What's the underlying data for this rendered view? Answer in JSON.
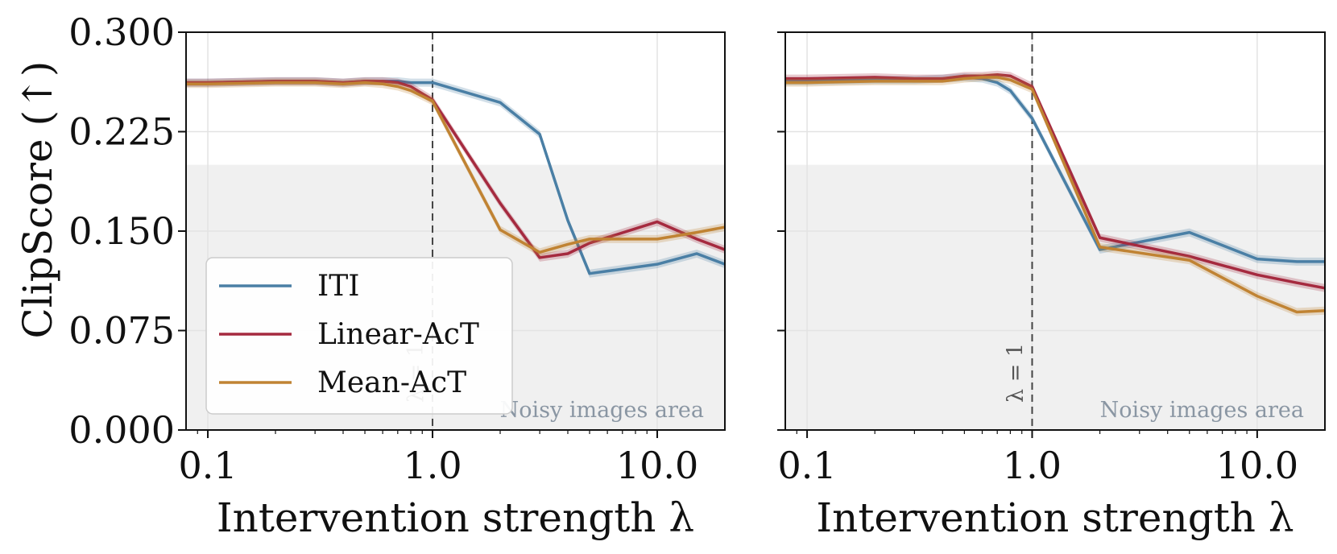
{
  "figure": {
    "ylabel": "ClipScore (↑)",
    "noisy_label": "Noisy images area",
    "lambda_label": "λ = 1",
    "legend": [
      "ITI",
      "Linear-AcT",
      "Mean-AcT"
    ]
  },
  "chart_data": [
    {
      "type": "line",
      "xlabel": "Intervention strength λ",
      "ylabel": "ClipScore (↑)",
      "xscale": "log",
      "xlim": [
        0.08,
        20
      ],
      "ylim": [
        0,
        0.3
      ],
      "xticks": [
        "0.1",
        "1.0",
        "10.0"
      ],
      "yticks": [
        "0.000",
        "0.075",
        "0.150",
        "0.225",
        "0.300"
      ],
      "grid": true,
      "noisy_region_below": 0.2,
      "vline_x": 1.0,
      "legend_position": "lower-left",
      "series": [
        {
          "name": "ITI",
          "color": "#4a7fa5",
          "x": [
            0.08,
            0.1,
            0.2,
            0.3,
            0.4,
            0.5,
            0.6,
            0.7,
            0.8,
            1.0,
            2.0,
            3.0,
            4.0,
            5.0,
            10.0,
            15.0,
            20.0
          ],
          "y": [
            0.262,
            0.262,
            0.263,
            0.263,
            0.262,
            0.263,
            0.263,
            0.263,
            0.262,
            0.262,
            0.247,
            0.223,
            0.158,
            0.118,
            0.125,
            0.133,
            0.125
          ]
        },
        {
          "name": "Linear-AcT",
          "color": "#a52a3f",
          "x": [
            0.08,
            0.1,
            0.2,
            0.3,
            0.4,
            0.5,
            0.6,
            0.7,
            0.8,
            1.0,
            2.0,
            3.0,
            4.0,
            5.0,
            10.0,
            15.0,
            20.0
          ],
          "y": [
            0.262,
            0.262,
            0.263,
            0.263,
            0.262,
            0.263,
            0.263,
            0.262,
            0.259,
            0.249,
            0.171,
            0.13,
            0.133,
            0.141,
            0.157,
            0.144,
            0.136
          ]
        },
        {
          "name": "Mean-AcT",
          "color": "#c08333",
          "x": [
            0.08,
            0.1,
            0.2,
            0.3,
            0.4,
            0.5,
            0.6,
            0.7,
            0.8,
            1.0,
            2.0,
            3.0,
            4.0,
            5.0,
            10.0,
            15.0,
            20.0
          ],
          "y": [
            0.261,
            0.261,
            0.262,
            0.262,
            0.261,
            0.262,
            0.261,
            0.259,
            0.256,
            0.248,
            0.151,
            0.134,
            0.14,
            0.144,
            0.144,
            0.149,
            0.153
          ]
        }
      ]
    },
    {
      "type": "line",
      "xlabel": "Intervention strength λ",
      "xscale": "log",
      "xlim": [
        0.08,
        20
      ],
      "ylim": [
        0,
        0.3
      ],
      "xticks": [
        "0.1",
        "1.0",
        "10.0"
      ],
      "grid": true,
      "noisy_region_below": 0.2,
      "vline_x": 1.0,
      "series": [
        {
          "name": "ITI",
          "color": "#4a7fa5",
          "x": [
            0.08,
            0.1,
            0.2,
            0.3,
            0.4,
            0.5,
            0.6,
            0.7,
            0.8,
            1.0,
            2.0,
            5.0,
            10.0,
            15.0,
            20.0
          ],
          "y": [
            0.263,
            0.263,
            0.264,
            0.264,
            0.265,
            0.266,
            0.265,
            0.262,
            0.256,
            0.235,
            0.136,
            0.149,
            0.129,
            0.127,
            0.127
          ]
        },
        {
          "name": "Linear-AcT",
          "color": "#a52a3f",
          "x": [
            0.08,
            0.1,
            0.2,
            0.3,
            0.4,
            0.5,
            0.6,
            0.7,
            0.8,
            1.0,
            2.0,
            5.0,
            10.0,
            15.0,
            20.0
          ],
          "y": [
            0.265,
            0.265,
            0.266,
            0.265,
            0.265,
            0.267,
            0.267,
            0.268,
            0.267,
            0.259,
            0.145,
            0.131,
            0.117,
            0.111,
            0.107
          ]
        },
        {
          "name": "Mean-AcT",
          "color": "#c08333",
          "x": [
            0.08,
            0.1,
            0.2,
            0.3,
            0.4,
            0.5,
            0.6,
            0.7,
            0.8,
            1.0,
            2.0,
            5.0,
            10.0,
            15.0,
            20.0
          ],
          "y": [
            0.262,
            0.262,
            0.263,
            0.263,
            0.263,
            0.265,
            0.266,
            0.266,
            0.264,
            0.257,
            0.138,
            0.128,
            0.101,
            0.089,
            0.09
          ]
        }
      ]
    }
  ]
}
